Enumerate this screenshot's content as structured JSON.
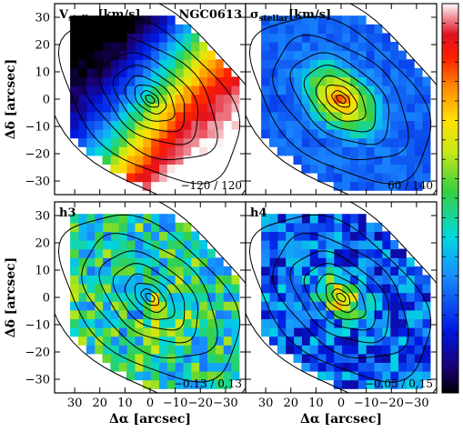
{
  "chart_data": {
    "type": "heatmap",
    "object": "NGC0613",
    "xlabel": "Δα [arcsec]",
    "ylabel": "Δδ [arcsec]",
    "xlim": [
      38,
      -38
    ],
    "ylim": [
      -35,
      35
    ],
    "x_ticks": [
      30,
      20,
      10,
      0,
      -10,
      -20,
      -30
    ],
    "x_tick_labels": [
      "30",
      "20",
      "10",
      "0",
      "−10",
      "−20",
      "−30"
    ],
    "y_ticks": [
      30,
      20,
      10,
      0,
      -10,
      -20,
      -30
    ],
    "y_tick_labels": [
      "30",
      "20",
      "10",
      "0",
      "−10",
      "−20",
      "−30"
    ],
    "colormap": "rainbow (black-blue-cyan-green-yellow-orange-red-white)",
    "contours": "stellar flux isophotes",
    "colorbar_ticks": 20,
    "panels": [
      {
        "id": "vel",
        "label": "V_stellar[km/s]",
        "label_main": "V",
        "label_sub": "stellar",
        "label_unit": "[km/s]",
        "range_text": "−120 / 120",
        "vmin": -120,
        "vmax": 120,
        "position": "top-left"
      },
      {
        "id": "sigma",
        "label": "σ_stellar[km/s]",
        "label_main": "σ",
        "label_sub": "stellar",
        "label_unit": "[km/s]",
        "range_text": "60 / 140",
        "vmin": 60,
        "vmax": 140,
        "position": "top-right"
      },
      {
        "id": "h3",
        "label": "h3",
        "label_main": "h3",
        "label_sub": "",
        "label_unit": "",
        "range_text": "−0.13 / 0.13",
        "vmin": -0.13,
        "vmax": 0.13,
        "position": "bottom-left"
      },
      {
        "id": "h4",
        "label": "h4",
        "label_main": "h4",
        "label_sub": "",
        "label_unit": "",
        "range_text": "−0.05 / 0.15",
        "vmin": -0.05,
        "vmax": 0.15,
        "position": "bottom-right"
      }
    ]
  }
}
